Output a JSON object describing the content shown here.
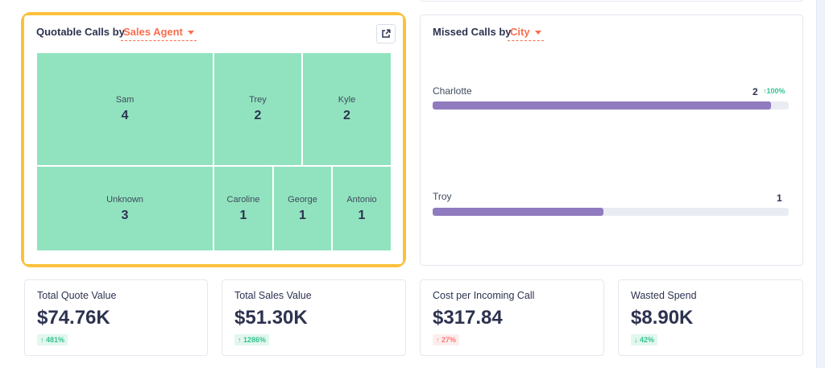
{
  "quotable": {
    "title": "Quotable Calls by",
    "dimension": "Sales Agent",
    "tiles": [
      {
        "name": "Sam",
        "value": "4"
      },
      {
        "name": "Trey",
        "value": "2"
      },
      {
        "name": "Kyle",
        "value": "2"
      },
      {
        "name": "Unknown",
        "value": "3"
      },
      {
        "name": "Caroline",
        "value": "1"
      },
      {
        "name": "George",
        "value": "1"
      },
      {
        "name": "Antonio",
        "value": "1"
      }
    ]
  },
  "missed": {
    "title": "Missed Calls by",
    "dimension": "City",
    "items": [
      {
        "city": "Charlotte",
        "count": "2",
        "change": "100%",
        "fill_pct": 95
      },
      {
        "city": "Troy",
        "count": "1",
        "change": "",
        "fill_pct": 48
      }
    ]
  },
  "kpis": [
    {
      "label": "Total Quote Value",
      "value": "$74.76K",
      "change": "481%",
      "arrow": "↑",
      "tone": "good"
    },
    {
      "label": "Total Sales Value",
      "value": "$51.30K",
      "change": "1286%",
      "arrow": "↑",
      "tone": "good"
    },
    {
      "label": "Cost per Incoming Call",
      "value": "$317.84",
      "change": "27%",
      "arrow": "↑",
      "tone": "bad"
    },
    {
      "label": "Wasted Spend",
      "value": "$8.90K",
      "change": "42%",
      "arrow": "↓",
      "tone": "good"
    }
  ],
  "colors": {
    "highlight": "#fbc13c",
    "accent": "#fb6e4e",
    "tile": "#91e3bf",
    "bar": "#8f7bbd",
    "positive": "#34c38f",
    "negative": "#ff7777"
  }
}
